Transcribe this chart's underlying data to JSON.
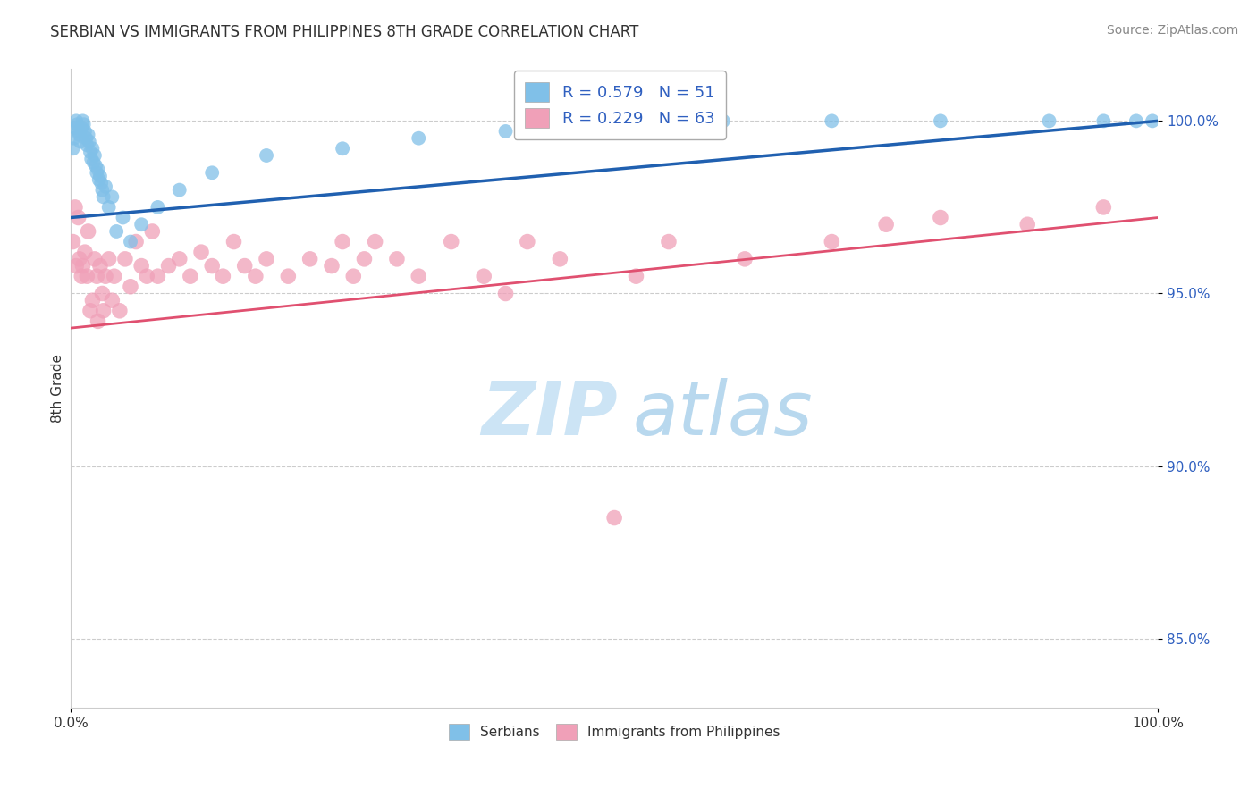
{
  "title": "SERBIAN VS IMMIGRANTS FROM PHILIPPINES 8TH GRADE CORRELATION CHART",
  "source": "Source: ZipAtlas.com",
  "ylabel": "8th Grade",
  "xlim": [
    0.0,
    100.0
  ],
  "ylim": [
    83.0,
    101.5
  ],
  "yticks": [
    85.0,
    90.0,
    95.0,
    100.0
  ],
  "serbian_R": 0.579,
  "serbian_N": 51,
  "philippines_R": 0.229,
  "philippines_N": 63,
  "blue_color": "#80c0e8",
  "blue_line_color": "#2060b0",
  "pink_color": "#f0a0b8",
  "pink_line_color": "#e05070",
  "legend_text_color": "#3060c0",
  "watermark_zip_color": "#cce4f5",
  "watermark_atlas_color": "#b8d8ee",
  "serbian_x": [
    0.2,
    0.3,
    0.4,
    0.5,
    0.6,
    0.7,
    0.8,
    0.9,
    1.0,
    1.1,
    1.2,
    1.3,
    1.4,
    1.5,
    1.6,
    1.7,
    1.8,
    1.9,
    2.0,
    2.1,
    2.2,
    2.3,
    2.4,
    2.5,
    2.6,
    2.7,
    2.8,
    2.9,
    3.0,
    3.2,
    3.5,
    3.8,
    4.2,
    4.8,
    5.5,
    6.5,
    8.0,
    10.0,
    13.0,
    18.0,
    25.0,
    32.0,
    40.0,
    50.0,
    60.0,
    70.0,
    80.0,
    90.0,
    95.0,
    98.0,
    99.5
  ],
  "serbian_y": [
    99.2,
    99.5,
    99.8,
    100.0,
    99.9,
    99.7,
    99.6,
    99.4,
    99.8,
    100.0,
    99.9,
    99.7,
    99.5,
    99.3,
    99.6,
    99.4,
    99.1,
    98.9,
    99.2,
    98.8,
    99.0,
    98.7,
    98.5,
    98.6,
    98.3,
    98.4,
    98.2,
    98.0,
    97.8,
    98.1,
    97.5,
    97.8,
    96.8,
    97.2,
    96.5,
    97.0,
    97.5,
    98.0,
    98.5,
    99.0,
    99.2,
    99.5,
    99.7,
    99.8,
    100.0,
    100.0,
    100.0,
    100.0,
    100.0,
    100.0,
    100.0
  ],
  "philippines_x": [
    0.2,
    0.4,
    0.5,
    0.7,
    0.8,
    1.0,
    1.1,
    1.3,
    1.5,
    1.6,
    1.8,
    2.0,
    2.2,
    2.4,
    2.5,
    2.7,
    2.9,
    3.0,
    3.2,
    3.5,
    3.8,
    4.0,
    4.5,
    5.0,
    5.5,
    6.0,
    6.5,
    7.0,
    7.5,
    8.0,
    9.0,
    10.0,
    11.0,
    12.0,
    13.0,
    14.0,
    15.0,
    16.0,
    17.0,
    18.0,
    20.0,
    22.0,
    24.0,
    25.0,
    26.0,
    27.0,
    28.0,
    30.0,
    32.0,
    35.0,
    38.0,
    40.0,
    42.0,
    45.0,
    50.0,
    52.0,
    55.0,
    62.0,
    70.0,
    75.0,
    80.0,
    88.0,
    95.0
  ],
  "philippines_y": [
    96.5,
    97.5,
    95.8,
    97.2,
    96.0,
    95.5,
    95.8,
    96.2,
    95.5,
    96.8,
    94.5,
    94.8,
    96.0,
    95.5,
    94.2,
    95.8,
    95.0,
    94.5,
    95.5,
    96.0,
    94.8,
    95.5,
    94.5,
    96.0,
    95.2,
    96.5,
    95.8,
    95.5,
    96.8,
    95.5,
    95.8,
    96.0,
    95.5,
    96.2,
    95.8,
    95.5,
    96.5,
    95.8,
    95.5,
    96.0,
    95.5,
    96.0,
    95.8,
    96.5,
    95.5,
    96.0,
    96.5,
    96.0,
    95.5,
    96.5,
    95.5,
    95.0,
    96.5,
    96.0,
    88.5,
    95.5,
    96.5,
    96.0,
    96.5,
    97.0,
    97.2,
    97.0,
    97.5
  ],
  "blue_line_x0": 0.0,
  "blue_line_y0": 97.2,
  "blue_line_x1": 100.0,
  "blue_line_y1": 100.0,
  "pink_line_x0": 0.0,
  "pink_line_y0": 94.0,
  "pink_line_x1": 100.0,
  "pink_line_y1": 97.2
}
